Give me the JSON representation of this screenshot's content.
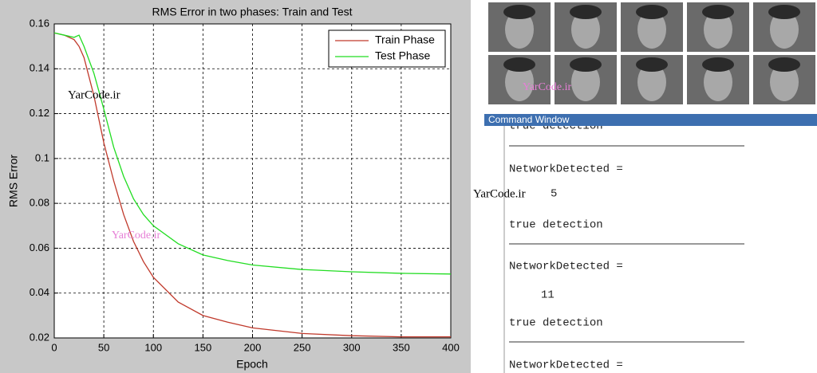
{
  "chart_data": {
    "type": "line",
    "title": "RMS Error in two phases: Train and Test",
    "x_label": "Epoch",
    "y_label": "RMS Error",
    "x": [
      0,
      10,
      20,
      25,
      30,
      40,
      50,
      60,
      70,
      80,
      90,
      100,
      125,
      150,
      175,
      200,
      250,
      300,
      350,
      400
    ],
    "series": [
      {
        "name": "Train Phase",
        "color": "#c0392b",
        "values": [
          0.156,
          0.155,
          0.153,
          0.15,
          0.145,
          0.128,
          0.107,
          0.09,
          0.075,
          0.063,
          0.054,
          0.047,
          0.036,
          0.03,
          0.027,
          0.0245,
          0.022,
          0.021,
          0.0205,
          0.0205
        ]
      },
      {
        "name": "Test Phase",
        "color": "#22dd22",
        "values": [
          0.156,
          0.155,
          0.154,
          0.155,
          0.15,
          0.138,
          0.122,
          0.105,
          0.092,
          0.082,
          0.075,
          0.07,
          0.062,
          0.057,
          0.0545,
          0.0525,
          0.0505,
          0.0495,
          0.0488,
          0.0485
        ]
      }
    ],
    "xlim": [
      0,
      400
    ],
    "xticks": [
      0,
      50,
      100,
      150,
      200,
      250,
      300,
      350,
      400
    ],
    "ylim": [
      0.02,
      0.16
    ],
    "yticks": [
      0.02,
      0.04,
      0.06,
      0.08,
      0.1,
      0.12,
      0.14,
      0.16
    ],
    "grid": true,
    "legend": "upper right"
  },
  "watermarks": [
    "YarCode.ir",
    "YarCode.ir",
    "YarCode.ir",
    "YarCode.ir"
  ],
  "command_window": {
    "title": "Command Window",
    "lines": [
      "true detection",
      "NetworkDetected =",
      "5",
      "true detection",
      "NetworkDetected =",
      "11",
      "true detection",
      "NetworkDetected ="
    ]
  }
}
